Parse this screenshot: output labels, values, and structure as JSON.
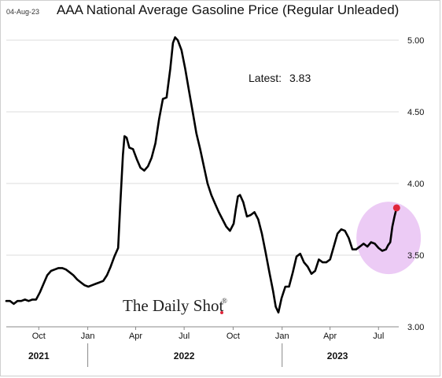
{
  "header": {
    "date": "04-Aug-23",
    "title": "AAA National Average Gasoline Price (Regular Unleaded)"
  },
  "watermark": {
    "text": "The Daily Shot",
    "mark": "®"
  },
  "chart_data": {
    "type": "line",
    "title": "AAA National Average Gasoline Price (Regular Unleaded)",
    "xlabel": "",
    "ylabel": "",
    "ylim": [
      3.0,
      5.0
    ],
    "yticks": [
      3.0,
      3.5,
      4.0,
      4.5,
      5.0
    ],
    "ytick_labels": [
      "3.00",
      "3.50",
      "4.00",
      "4.50",
      "5.00"
    ],
    "y_axis_position": "right",
    "grid": "horizontal",
    "x_start": "2021-08-01",
    "x_end": "2023-08-08",
    "month_ticks": [
      {
        "date": "2021-10-01",
        "label": "Oct"
      },
      {
        "date": "2022-01-01",
        "label": "Jan"
      },
      {
        "date": "2022-04-01",
        "label": "Apr"
      },
      {
        "date": "2022-07-01",
        "label": "Jul"
      },
      {
        "date": "2022-10-01",
        "label": "Oct"
      },
      {
        "date": "2023-01-01",
        "label": "Jan"
      },
      {
        "date": "2023-04-01",
        "label": "Apr"
      },
      {
        "date": "2023-07-01",
        "label": "Jul"
      }
    ],
    "year_labels": [
      {
        "label": "2021",
        "date": "2021-10-01"
      },
      {
        "label": "2022",
        "date": "2022-07-01"
      },
      {
        "label": "2023",
        "date": "2023-04-15"
      }
    ],
    "year_dividers": [
      "2022-01-01",
      "2023-01-01"
    ],
    "annotation": {
      "label": "Latest:",
      "value": "3.83"
    },
    "highlight": {
      "date": "2023-07-20",
      "value": 3.62,
      "fill": "#eccbf5"
    },
    "latest_point": {
      "date": "2023-08-04",
      "value": 3.83,
      "color": "#e0263b"
    },
    "line_color": "#000000",
    "series": [
      {
        "x": [
          "2021-08-01",
          "2021-08-08",
          "2021-08-15",
          "2021-08-22",
          "2021-08-29",
          "2021-09-05",
          "2021-09-12",
          "2021-09-19",
          "2021-09-26",
          "2021-10-03",
          "2021-10-10",
          "2021-10-17",
          "2021-10-24",
          "2021-10-31",
          "2021-11-07",
          "2021-11-14",
          "2021-11-21",
          "2021-11-28",
          "2021-12-05",
          "2021-12-12",
          "2021-12-19",
          "2021-12-26",
          "2022-01-02",
          "2022-01-09",
          "2022-01-16",
          "2022-01-23",
          "2022-01-30",
          "2022-02-06",
          "2022-02-13",
          "2022-02-20",
          "2022-02-27",
          "2022-03-03",
          "2022-03-08",
          "2022-03-11",
          "2022-03-15",
          "2022-03-20",
          "2022-03-27",
          "2022-04-03",
          "2022-04-10",
          "2022-04-17",
          "2022-04-24",
          "2022-05-01",
          "2022-05-08",
          "2022-05-15",
          "2022-05-22",
          "2022-05-29",
          "2022-06-05",
          "2022-06-10",
          "2022-06-14",
          "2022-06-19",
          "2022-06-26",
          "2022-07-03",
          "2022-07-10",
          "2022-07-17",
          "2022-07-24",
          "2022-07-31",
          "2022-08-07",
          "2022-08-14",
          "2022-08-21",
          "2022-08-28",
          "2022-09-04",
          "2022-09-11",
          "2022-09-18",
          "2022-09-25",
          "2022-10-02",
          "2022-10-06",
          "2022-10-10",
          "2022-10-14",
          "2022-10-20",
          "2022-10-27",
          "2022-11-03",
          "2022-11-10",
          "2022-11-17",
          "2022-11-24",
          "2022-12-01",
          "2022-12-08",
          "2022-12-15",
          "2022-12-20",
          "2022-12-25",
          "2022-12-31",
          "2023-01-07",
          "2023-01-14",
          "2023-01-21",
          "2023-01-28",
          "2023-02-04",
          "2023-02-11",
          "2023-02-18",
          "2023-02-25",
          "2023-03-04",
          "2023-03-11",
          "2023-03-18",
          "2023-03-25",
          "2023-04-01",
          "2023-04-08",
          "2023-04-15",
          "2023-04-22",
          "2023-04-29",
          "2023-05-06",
          "2023-05-13",
          "2023-05-20",
          "2023-05-27",
          "2023-06-03",
          "2023-06-10",
          "2023-06-17",
          "2023-06-24",
          "2023-07-01",
          "2023-07-08",
          "2023-07-15",
          "2023-07-19",
          "2023-07-23",
          "2023-07-27",
          "2023-07-31",
          "2023-08-04"
        ],
        "y": [
          3.18,
          3.18,
          3.16,
          3.18,
          3.18,
          3.19,
          3.18,
          3.19,
          3.19,
          3.24,
          3.3,
          3.36,
          3.39,
          3.4,
          3.41,
          3.41,
          3.4,
          3.38,
          3.36,
          3.33,
          3.31,
          3.29,
          3.28,
          3.29,
          3.3,
          3.31,
          3.32,
          3.36,
          3.42,
          3.49,
          3.55,
          3.85,
          4.2,
          4.33,
          4.32,
          4.25,
          4.24,
          4.17,
          4.11,
          4.09,
          4.12,
          4.18,
          4.28,
          4.45,
          4.59,
          4.6,
          4.8,
          4.98,
          5.02,
          5.0,
          4.93,
          4.8,
          4.65,
          4.5,
          4.35,
          4.24,
          4.12,
          4.0,
          3.92,
          3.86,
          3.8,
          3.75,
          3.7,
          3.67,
          3.72,
          3.82,
          3.91,
          3.92,
          3.87,
          3.77,
          3.78,
          3.8,
          3.75,
          3.65,
          3.52,
          3.38,
          3.25,
          3.14,
          3.1,
          3.2,
          3.28,
          3.28,
          3.38,
          3.49,
          3.51,
          3.45,
          3.42,
          3.37,
          3.39,
          3.47,
          3.45,
          3.45,
          3.47,
          3.56,
          3.65,
          3.68,
          3.67,
          3.62,
          3.54,
          3.54,
          3.56,
          3.58,
          3.56,
          3.59,
          3.58,
          3.55,
          3.53,
          3.54,
          3.57,
          3.59,
          3.7,
          3.77,
          3.83
        ]
      }
    ]
  }
}
